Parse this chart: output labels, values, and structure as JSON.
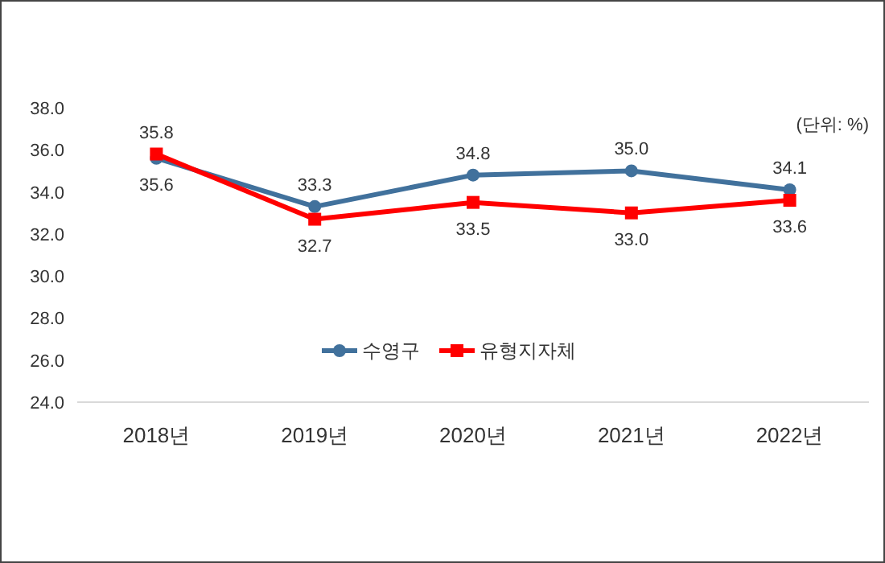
{
  "chart_data": {
    "type": "line",
    "categories": [
      "2018년",
      "2019년",
      "2020년",
      "2021년",
      "2022년"
    ],
    "series": [
      {
        "name": "수영구",
        "color": "#41719c",
        "marker": "circle",
        "values": [
          35.6,
          33.3,
          34.8,
          35.0,
          34.1
        ],
        "value_labels": [
          "35.6",
          "33.3",
          "34.8",
          "35.0",
          "34.1"
        ]
      },
      {
        "name": "유형지자체",
        "color": "#ff0000",
        "marker": "square",
        "values": [
          35.8,
          32.7,
          33.5,
          33.0,
          33.6
        ],
        "value_labels": [
          "35.8",
          "32.7",
          "33.5",
          "33.0",
          "33.6"
        ]
      }
    ],
    "ylim": [
      24,
      38
    ],
    "yticks": [
      {
        "value": 24,
        "label": "24.0"
      },
      {
        "value": 26,
        "label": "26.0"
      },
      {
        "value": 28,
        "label": "28.0"
      },
      {
        "value": 30,
        "label": "30.0"
      },
      {
        "value": 32,
        "label": "32.0"
      },
      {
        "value": 34,
        "label": "34.0"
      },
      {
        "value": 36,
        "label": "36.0"
      },
      {
        "value": 38,
        "label": "38.0"
      }
    ],
    "annotations": [
      "(단위: %)"
    ],
    "legend": "bottom",
    "grid": false,
    "line_style": "solid"
  }
}
